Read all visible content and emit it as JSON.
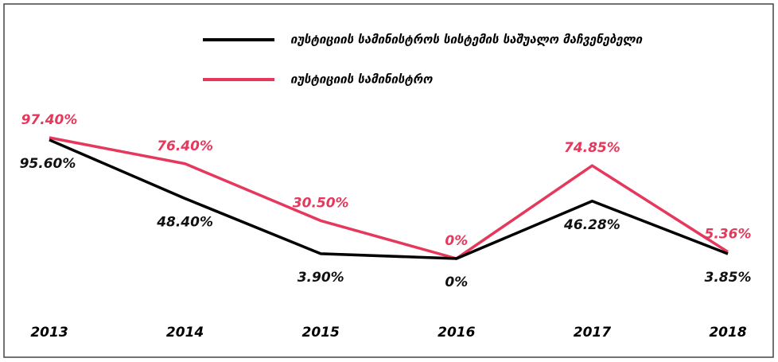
{
  "chart_data": {
    "type": "line",
    "categories": [
      "2013",
      "2014",
      "2015",
      "2016",
      "2017",
      "2018"
    ],
    "series": [
      {
        "name": "იუსტიციის სამინისტროს სისტემის საშუალო მაჩვენებელი",
        "color": "#000000",
        "values": [
          95.6,
          48.4,
          3.9,
          0,
          46.28,
          3.85
        ],
        "value_labels": [
          "95.60%",
          "48.40%",
          "3.90%",
          "0%",
          "46.28%",
          "3.85%"
        ]
      },
      {
        "name": "იუსტიციის სამინისტრო",
        "color": "#e5385c",
        "values": [
          97.4,
          76.4,
          30.5,
          0,
          74.85,
          5.36
        ],
        "value_labels": [
          "97.40%",
          "76.40%",
          "30.50%",
          "0%",
          "74.85%",
          "5.36%"
        ]
      }
    ]
  }
}
